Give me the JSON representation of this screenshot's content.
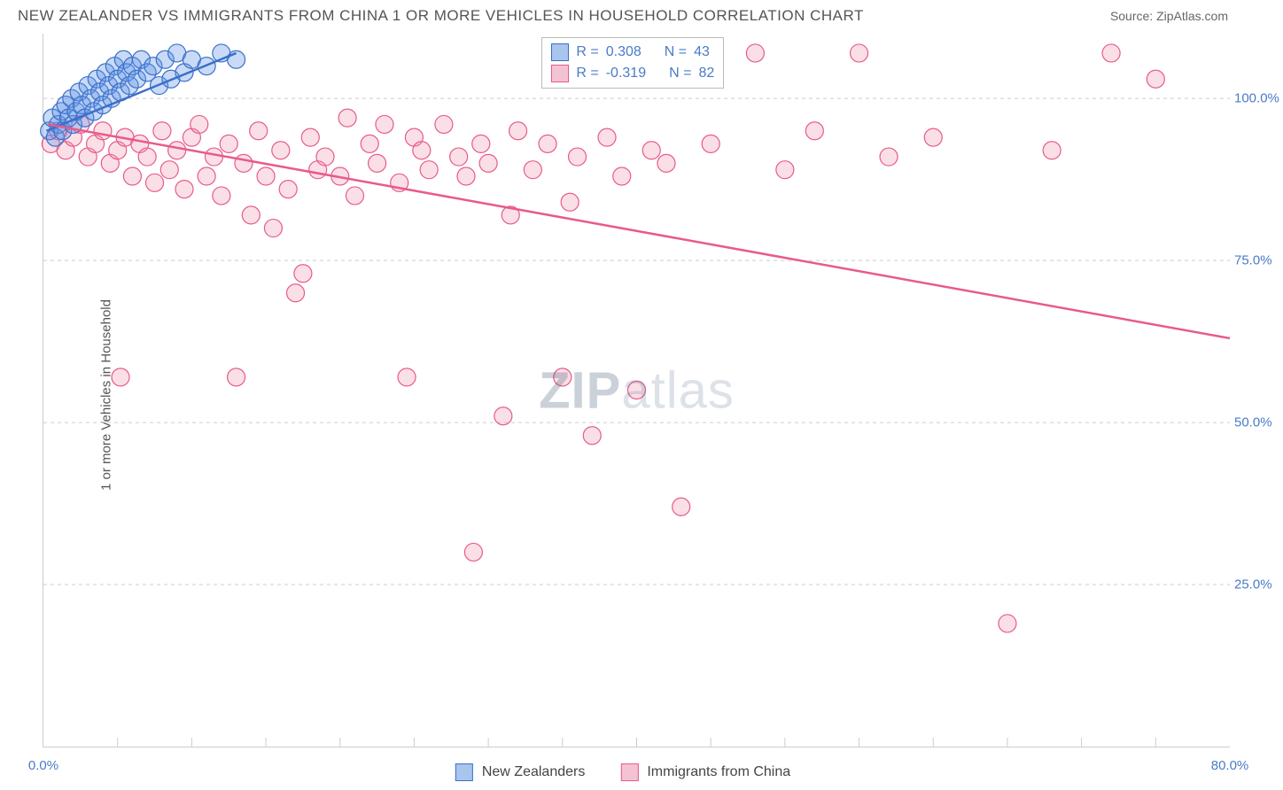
{
  "header": {
    "title": "NEW ZEALANDER VS IMMIGRANTS FROM CHINA 1 OR MORE VEHICLES IN HOUSEHOLD CORRELATION CHART",
    "source": "Source: ZipAtlas.com"
  },
  "axes": {
    "ylabel": "1 or more Vehicles in Household",
    "xlim": [
      0,
      80
    ],
    "ylim": [
      0,
      110
    ],
    "grid_y": [
      25,
      50,
      75,
      100
    ],
    "ytick_labels": [
      "25.0%",
      "50.0%",
      "75.0%",
      "100.0%"
    ],
    "xtick_positions": [
      0,
      80
    ],
    "xtick_labels": [
      "0.0%",
      "80.0%"
    ],
    "xtick_minor": [
      5,
      10,
      15,
      20,
      25,
      30,
      35,
      40,
      45,
      50,
      55,
      60,
      65,
      70,
      75
    ],
    "grid_color": "#cccccc",
    "tick_label_color": "#4a7bc8"
  },
  "watermark": {
    "zip": "ZIP",
    "atlas": "atlas"
  },
  "series": [
    {
      "name": "New Zealanders",
      "fill": "rgba(96,150,230,0.35)",
      "stroke": "#3b6fc9",
      "swatch_fill": "#a8c5ee",
      "swatch_border": "#3b6fc9",
      "r_label": "R =",
      "r_value": "0.308",
      "n_label": "N =",
      "n_value": "43",
      "trend": {
        "x1": 0.2,
        "y1": 95,
        "x2": 13,
        "y2": 107
      },
      "points": [
        [
          0.4,
          95
        ],
        [
          0.6,
          97
        ],
        [
          0.8,
          94
        ],
        [
          1.0,
          96
        ],
        [
          1.2,
          98
        ],
        [
          1.3,
          95
        ],
        [
          1.5,
          99
        ],
        [
          1.7,
          97
        ],
        [
          1.9,
          100
        ],
        [
          2.0,
          96
        ],
        [
          2.2,
          98
        ],
        [
          2.4,
          101
        ],
        [
          2.6,
          99
        ],
        [
          2.8,
          97
        ],
        [
          3.0,
          102
        ],
        [
          3.2,
          100
        ],
        [
          3.4,
          98
        ],
        [
          3.6,
          103
        ],
        [
          3.8,
          101
        ],
        [
          4.0,
          99
        ],
        [
          4.2,
          104
        ],
        [
          4.4,
          102
        ],
        [
          4.6,
          100
        ],
        [
          4.8,
          105
        ],
        [
          5.0,
          103
        ],
        [
          5.2,
          101
        ],
        [
          5.4,
          106
        ],
        [
          5.6,
          104
        ],
        [
          5.8,
          102
        ],
        [
          6.0,
          105
        ],
        [
          6.3,
          103
        ],
        [
          6.6,
          106
        ],
        [
          7.0,
          104
        ],
        [
          7.4,
          105
        ],
        [
          7.8,
          102
        ],
        [
          8.2,
          106
        ],
        [
          8.6,
          103
        ],
        [
          9.0,
          107
        ],
        [
          9.5,
          104
        ],
        [
          10.0,
          106
        ],
        [
          11.0,
          105
        ],
        [
          12.0,
          107
        ],
        [
          13.0,
          106
        ]
      ]
    },
    {
      "name": "Immigrants from China",
      "fill": "rgba(240,140,170,0.28)",
      "stroke": "#e85a8a",
      "swatch_fill": "#f5c2d3",
      "swatch_border": "#e85a8a",
      "r_label": "R =",
      "r_value": "-0.319",
      "n_label": "N =",
      "n_value": "82",
      "trend": {
        "x1": 0.3,
        "y1": 96,
        "x2": 80,
        "y2": 63
      },
      "points": [
        [
          0.5,
          93
        ],
        [
          1.0,
          95
        ],
        [
          1.5,
          92
        ],
        [
          2.0,
          94
        ],
        [
          2.5,
          96
        ],
        [
          3.0,
          91
        ],
        [
          3.5,
          93
        ],
        [
          4.0,
          95
        ],
        [
          4.5,
          90
        ],
        [
          5.0,
          92
        ],
        [
          5.2,
          57
        ],
        [
          5.5,
          94
        ],
        [
          6.0,
          88
        ],
        [
          6.5,
          93
        ],
        [
          7.0,
          91
        ],
        [
          7.5,
          87
        ],
        [
          8.0,
          95
        ],
        [
          8.5,
          89
        ],
        [
          9.0,
          92
        ],
        [
          9.5,
          86
        ],
        [
          10.0,
          94
        ],
        [
          10.5,
          96
        ],
        [
          11.0,
          88
        ],
        [
          11.5,
          91
        ],
        [
          12.0,
          85
        ],
        [
          12.5,
          93
        ],
        [
          13.0,
          57
        ],
        [
          13.5,
          90
        ],
        [
          14.0,
          82
        ],
        [
          14.5,
          95
        ],
        [
          15.0,
          88
        ],
        [
          15.5,
          80
        ],
        [
          16.0,
          92
        ],
        [
          16.5,
          86
        ],
        [
          17.0,
          70
        ],
        [
          17.5,
          73
        ],
        [
          18.0,
          94
        ],
        [
          18.5,
          89
        ],
        [
          19.0,
          91
        ],
        [
          20.0,
          88
        ],
        [
          20.5,
          97
        ],
        [
          21.0,
          85
        ],
        [
          22.0,
          93
        ],
        [
          22.5,
          90
        ],
        [
          23.0,
          96
        ],
        [
          24.0,
          87
        ],
        [
          24.5,
          57
        ],
        [
          25.0,
          94
        ],
        [
          25.5,
          92
        ],
        [
          26.0,
          89
        ],
        [
          27.0,
          96
        ],
        [
          28.0,
          91
        ],
        [
          28.5,
          88
        ],
        [
          29.0,
          30
        ],
        [
          29.5,
          93
        ],
        [
          30.0,
          90
        ],
        [
          31.0,
          51
        ],
        [
          31.5,
          82
        ],
        [
          32.0,
          95
        ],
        [
          33.0,
          89
        ],
        [
          34.0,
          93
        ],
        [
          35.0,
          57
        ],
        [
          35.5,
          84
        ],
        [
          36.0,
          91
        ],
        [
          37.0,
          48
        ],
        [
          38.0,
          94
        ],
        [
          39.0,
          88
        ],
        [
          40.0,
          55
        ],
        [
          41.0,
          92
        ],
        [
          42.0,
          90
        ],
        [
          43.0,
          37
        ],
        [
          45.0,
          93
        ],
        [
          48.0,
          107
        ],
        [
          50.0,
          89
        ],
        [
          52.0,
          95
        ],
        [
          55.0,
          107
        ],
        [
          57.0,
          91
        ],
        [
          60.0,
          94
        ],
        [
          65.0,
          19
        ],
        [
          68.0,
          92
        ],
        [
          72.0,
          107
        ],
        [
          75.0,
          103
        ]
      ]
    }
  ],
  "styling": {
    "marker_radius": 10,
    "marker_stroke_width": 1.2,
    "trend_line_width": 2.5,
    "background_color": "#ffffff",
    "title_color": "#555555",
    "title_fontsize": 17,
    "label_fontsize": 15
  }
}
